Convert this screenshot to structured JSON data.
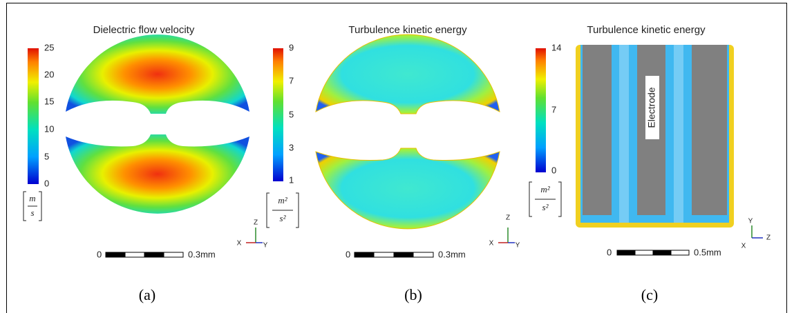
{
  "panels": [
    {
      "title": "Dielectric flow velocity",
      "colorbar": {
        "ticks": [
          "25",
          "20",
          "15",
          "10",
          "5",
          "0"
        ],
        "unit": {
          "numerator": "m",
          "denominator": "s"
        }
      },
      "axes": {
        "up": "Z",
        "left": "X",
        "right": "Y"
      },
      "scale": {
        "start": "0",
        "end": "0.3mm"
      },
      "caption": "(a)"
    },
    {
      "title": "Turbulence kinetic energy",
      "colorbar": {
        "ticks": [
          "9",
          "7",
          "5",
          "3",
          "1"
        ],
        "unit": {
          "numerator": "m²",
          "denominator": "s²"
        }
      },
      "axes": {
        "up": "Z",
        "left": "X",
        "right": "Y"
      },
      "scale": {
        "start": "0",
        "end": "0.3mm"
      },
      "caption": "(b)"
    },
    {
      "title": "Turbulence kinetic energy",
      "colorbar": {
        "ticks": [
          "14",
          "7",
          "0"
        ],
        "unit": {
          "numerator": "m²",
          "denominator": "s²"
        }
      },
      "axes": {
        "up": "Y",
        "left": "X",
        "right": "Z"
      },
      "scale": {
        "start": "0",
        "end": "0.5mm"
      },
      "caption": "(c)",
      "label": "Electrode"
    }
  ]
}
